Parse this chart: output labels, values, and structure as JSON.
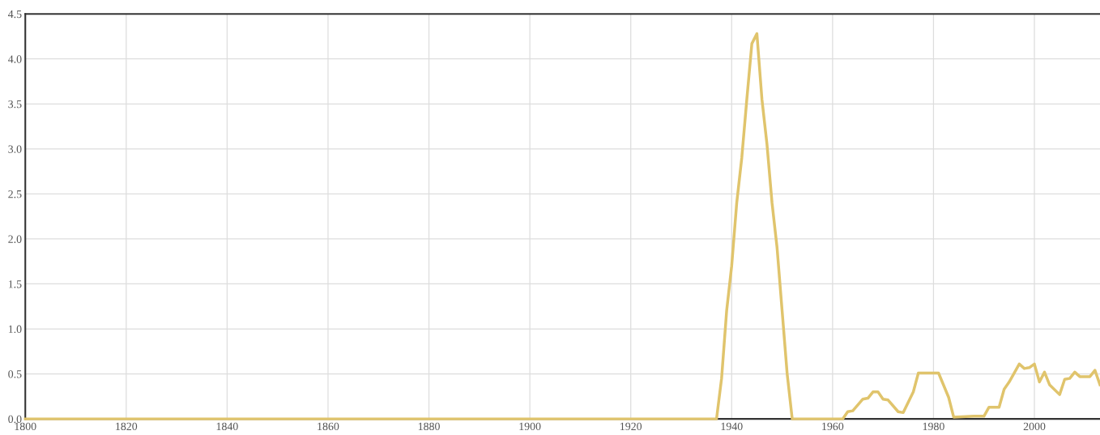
{
  "chart_data": {
    "type": "line",
    "x": [
      1800,
      1937,
      1938,
      1939,
      1940,
      1941,
      1942,
      1943,
      1944,
      1945,
      1946,
      1947,
      1948,
      1949,
      1950,
      1951,
      1952,
      1962,
      1963,
      1964,
      1966,
      1967,
      1968,
      1969,
      1970,
      1971,
      1973,
      1974,
      1976,
      1977,
      1981,
      1983,
      1984,
      1988,
      1990,
      1991,
      1993,
      1994,
      1995,
      1997,
      1998,
      1999,
      2000,
      2001,
      2002,
      2003,
      2005,
      2006,
      2007,
      2008,
      2009,
      2011,
      2012,
      2013
    ],
    "series": [
      {
        "color": "#e0c46c",
        "values": [
          0,
          0,
          0.45,
          1.2,
          1.7,
          2.4,
          2.9,
          3.55,
          4.17,
          4.28,
          3.55,
          3.05,
          2.4,
          1.9,
          1.2,
          0.5,
          0,
          0,
          0.08,
          0.09,
          0.22,
          0.23,
          0.3,
          0.3,
          0.22,
          0.21,
          0.08,
          0.07,
          0.3,
          0.51,
          0.51,
          0.24,
          0.02,
          0.03,
          0.03,
          0.13,
          0.13,
          0.33,
          0.41,
          0.61,
          0.56,
          0.57,
          0.61,
          0.41,
          0.52,
          0.38,
          0.27,
          0.44,
          0.45,
          0.52,
          0.47,
          0.47,
          0.54,
          0.38
        ]
      }
    ],
    "xlim": [
      1800,
      2013
    ],
    "ylim": [
      0,
      4.5
    ],
    "xticks": [
      1800,
      1820,
      1840,
      1860,
      1880,
      1900,
      1920,
      1940,
      1960,
      1980,
      2000
    ],
    "yticks": [
      {
        "value": 0,
        "label": "0.0"
      },
      {
        "value": 0.5,
        "label": "0.5"
      },
      {
        "value": 1,
        "label": "1.0"
      },
      {
        "value": 1.5,
        "label": "1.5"
      },
      {
        "value": 2,
        "label": "2.0"
      },
      {
        "value": 2.5,
        "label": "2.5"
      },
      {
        "value": 3,
        "label": "3.0"
      },
      {
        "value": 3.5,
        "label": "3.5"
      },
      {
        "value": 4,
        "label": "4.0"
      },
      {
        "value": 4.5,
        "label": "4.5"
      }
    ],
    "grid": true,
    "marker": "none",
    "line_style": "solid"
  }
}
